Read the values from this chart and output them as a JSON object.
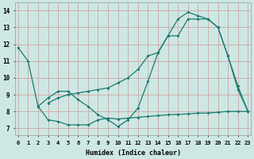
{
  "xlabel": "Humidex (Indice chaleur)",
  "bg_color": "#cde8e4",
  "grid_color": "#cc9999",
  "line_color": "#1a7a6e",
  "x_ticks": [
    0,
    1,
    2,
    3,
    4,
    5,
    6,
    7,
    8,
    9,
    10,
    11,
    12,
    13,
    14,
    15,
    16,
    17,
    18,
    19,
    20,
    21,
    22,
    23
  ],
  "y_ticks": [
    7,
    8,
    9,
    10,
    11,
    12,
    13,
    14
  ],
  "ylim": [
    6.6,
    14.5
  ],
  "xlim": [
    -0.3,
    23.3
  ],
  "line1_x": [
    0,
    1,
    2,
    3,
    4,
    5,
    6,
    7,
    8,
    9,
    10,
    11,
    12,
    13,
    14,
    15,
    16,
    17,
    18,
    19,
    20,
    21,
    22,
    23
  ],
  "line1_y": [
    11.8,
    11.0,
    8.3,
    7.5,
    7.4,
    7.2,
    7.2,
    7.2,
    7.5,
    7.6,
    7.55,
    7.6,
    7.65,
    7.7,
    7.75,
    7.8,
    7.82,
    7.85,
    7.9,
    7.9,
    7.95,
    8.0,
    8.0,
    8.0
  ],
  "line2_x": [
    2,
    3,
    4,
    5,
    6,
    7,
    8,
    9,
    10,
    11,
    12,
    13,
    14,
    15,
    16,
    17,
    18,
    19,
    20,
    21,
    22,
    23
  ],
  "line2_y": [
    8.3,
    8.8,
    9.2,
    9.2,
    8.7,
    8.3,
    7.8,
    7.5,
    7.1,
    7.5,
    8.2,
    9.8,
    11.5,
    12.5,
    13.5,
    13.9,
    13.7,
    13.5,
    13.0,
    11.3,
    9.5,
    8.0
  ],
  "line3_x": [
    3,
    4,
    5,
    6,
    7,
    8,
    9,
    10,
    11,
    12,
    13,
    14,
    15,
    16,
    17,
    18,
    19,
    20,
    21,
    22,
    23
  ],
  "line3_y": [
    8.5,
    8.8,
    9.0,
    9.1,
    9.2,
    9.3,
    9.4,
    9.7,
    10.0,
    10.5,
    11.3,
    11.5,
    12.5,
    12.5,
    13.5,
    13.5,
    13.5,
    13.0,
    11.3,
    9.3,
    8.0
  ]
}
